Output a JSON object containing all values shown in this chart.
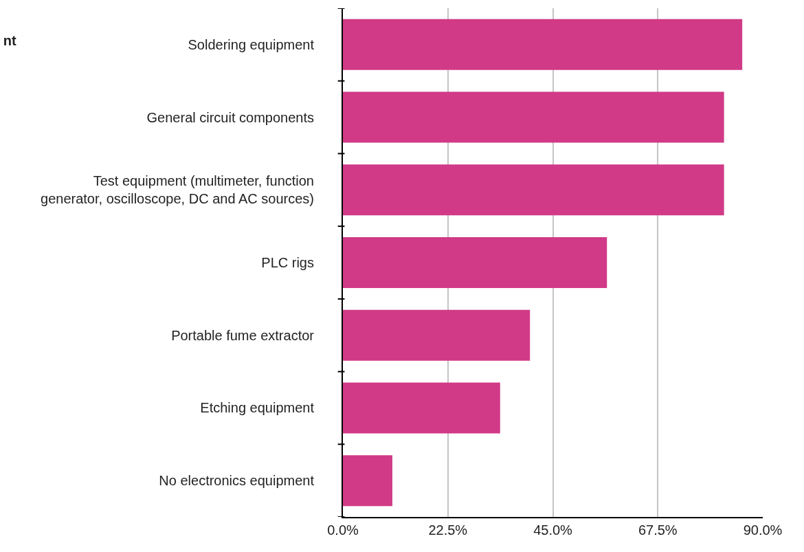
{
  "chart_data": {
    "type": "bar",
    "orientation": "horizontal",
    "title": "nt",
    "categories": [
      "Soldering equipment",
      "General circuit components",
      "Test equipment (multimeter, function\ngenerator, oscilloscope, DC and AC sources)",
      "PLC rigs",
      "Portable fume extractor",
      "Etching equipment",
      "No electronics equipment"
    ],
    "values": [
      85.6,
      81.7,
      81.7,
      56.6,
      40.1,
      33.7,
      10.6
    ],
    "color": "#d13a87",
    "xlim": [
      0,
      90
    ],
    "xticks": [
      {
        "value": 0,
        "label": "0.0%"
      },
      {
        "value": 22.5,
        "label": "22.5%"
      },
      {
        "value": 45,
        "label": "45.0%"
      },
      {
        "value": 67.5,
        "label": "67.5%"
      },
      {
        "value": 90,
        "label": "90.0%"
      }
    ],
    "grid": "x",
    "legend": false
  }
}
